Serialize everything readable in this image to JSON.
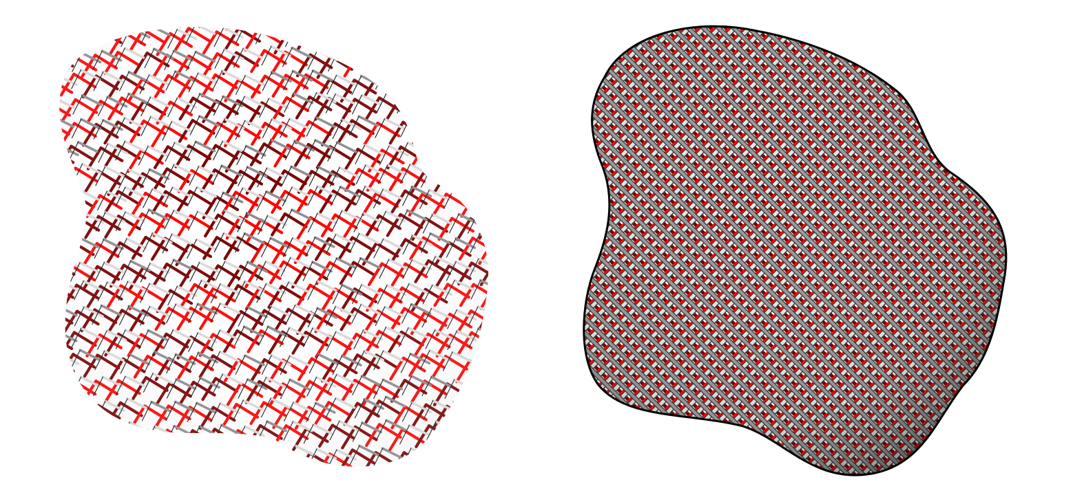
{
  "figure": {
    "background": "#ffffff",
    "panels": [
      {
        "id": "left",
        "description_icon": "wire-lattice-blob-icon",
        "colors": {
          "front_strand": "#d9d9d9",
          "mid_strand": "#8c8c8c",
          "back_strand_dark": "#7a0000",
          "back_strand_bright": "#ff0000",
          "outline": "#1a1a1a"
        }
      },
      {
        "id": "right",
        "description_icon": "woven-mesh-blob-icon",
        "colors": {
          "front_strand": "#e6e6e6",
          "mid_strand": "#9a9a9a",
          "shadow_strand": "#3a3a3a",
          "back_strand_dark": "#6e0000",
          "back_strand_bright": "#ff0000",
          "outline": "#000000"
        }
      }
    ]
  }
}
